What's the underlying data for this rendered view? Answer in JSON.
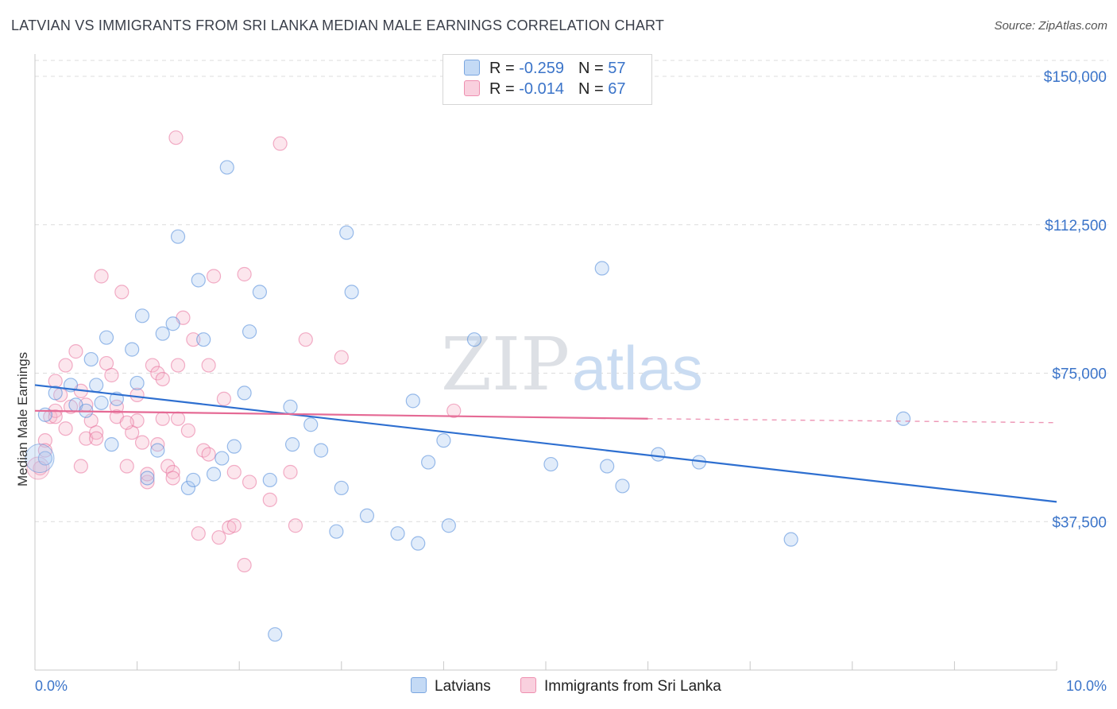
{
  "title": "LATVIAN VS IMMIGRANTS FROM SRI LANKA MEDIAN MALE EARNINGS CORRELATION CHART",
  "source": "Source: ZipAtlas.com",
  "watermark": {
    "zip": "ZIP",
    "atlas": "atlas"
  },
  "legend": {
    "rows": [
      {
        "r_label": "R =",
        "r_value": "-0.259",
        "n_label": "N =",
        "n_value": "57",
        "color": "#a8c8f0"
      },
      {
        "r_label": "R =",
        "r_value": "-0.014",
        "n_label": "N =",
        "n_value": "67",
        "color": "#f6b8cc"
      }
    ]
  },
  "bottom_legend": [
    {
      "label": "Latvians",
      "color": "#a8c8f0"
    },
    {
      "label": "Immigrants from Sri Lanka",
      "color": "#f6b8cc"
    }
  ],
  "chart_data": {
    "type": "scatter",
    "title": "LATVIAN VS IMMIGRANTS FROM SRI LANKA MEDIAN MALE EARNINGS CORRELATION CHART",
    "xlabel": "",
    "ylabel": "Median Male Earnings",
    "x_tick_labels": [
      "0.0%",
      "10.0%"
    ],
    "y_tick_labels": [
      "$37,500",
      "$75,000",
      "$112,500",
      "$150,000"
    ],
    "y_ticks": [
      37500,
      75000,
      112500,
      150000
    ],
    "xlim": [
      0,
      10
    ],
    "ylim": [
      0,
      155000
    ],
    "grid": true,
    "series": [
      {
        "name": "Latvians",
        "color": "#4a86d8",
        "fill": "rgba(168,200,240,0.35)",
        "points": [
          [
            0.1,
            53500
          ],
          [
            0.1,
            64500
          ],
          [
            0.2,
            70000
          ],
          [
            0.35,
            72000
          ],
          [
            0.4,
            67000
          ],
          [
            0.5,
            65500
          ],
          [
            0.55,
            78500
          ],
          [
            0.6,
            72000
          ],
          [
            0.65,
            67500
          ],
          [
            0.7,
            84000
          ],
          [
            0.75,
            57000
          ],
          [
            0.8,
            68500
          ],
          [
            0.95,
            81000
          ],
          [
            1.05,
            89500
          ],
          [
            1.1,
            48500
          ],
          [
            1.2,
            55500
          ],
          [
            1.25,
            85000
          ],
          [
            1.35,
            87500
          ],
          [
            1.4,
            109500
          ],
          [
            1.5,
            46000
          ],
          [
            1.55,
            48000
          ],
          [
            1.6,
            98500
          ],
          [
            1.65,
            83500
          ],
          [
            1.75,
            49500
          ],
          [
            1.83,
            53500
          ],
          [
            1.88,
            127000
          ],
          [
            1.95,
            56500
          ],
          [
            2.05,
            70000
          ],
          [
            2.1,
            85500
          ],
          [
            2.2,
            95500
          ],
          [
            2.3,
            48000
          ],
          [
            2.35,
            9000
          ],
          [
            2.5,
            66500
          ],
          [
            2.52,
            57000
          ],
          [
            2.7,
            62000
          ],
          [
            2.8,
            55500
          ],
          [
            2.95,
            35000
          ],
          [
            3.0,
            46000
          ],
          [
            3.05,
            110500
          ],
          [
            3.1,
            95500
          ],
          [
            3.25,
            39000
          ],
          [
            3.55,
            34500
          ],
          [
            3.7,
            68000
          ],
          [
            3.75,
            32000
          ],
          [
            3.85,
            52500
          ],
          [
            4.0,
            58000
          ],
          [
            4.05,
            36500
          ],
          [
            4.3,
            83500
          ],
          [
            5.05,
            52000
          ],
          [
            5.55,
            101500
          ],
          [
            5.6,
            51500
          ],
          [
            5.75,
            46500
          ],
          [
            6.1,
            54500
          ],
          [
            6.5,
            52500
          ],
          [
            7.4,
            33000
          ],
          [
            8.5,
            63500
          ],
          [
            1.0,
            72500
          ]
        ],
        "trend": {
          "x0": 0.0,
          "y0": 72000,
          "x1": 10.0,
          "y1": 42500
        }
      },
      {
        "name": "Immigrants from Sri Lanka",
        "color": "#e8709a",
        "fill": "rgba(246,184,204,0.35)",
        "points": [
          [
            0.05,
            51000
          ],
          [
            0.1,
            58000
          ],
          [
            0.1,
            55500
          ],
          [
            0.15,
            64000
          ],
          [
            0.2,
            65500
          ],
          [
            0.2,
            73000
          ],
          [
            0.25,
            69500
          ],
          [
            0.3,
            77000
          ],
          [
            0.3,
            61000
          ],
          [
            0.35,
            66500
          ],
          [
            0.4,
            80500
          ],
          [
            0.45,
            70500
          ],
          [
            0.45,
            51500
          ],
          [
            0.5,
            67000
          ],
          [
            0.5,
            58500
          ],
          [
            0.55,
            63000
          ],
          [
            0.6,
            60000
          ],
          [
            0.6,
            58500
          ],
          [
            0.65,
            99500
          ],
          [
            0.7,
            77500
          ],
          [
            0.75,
            74500
          ],
          [
            0.8,
            66500
          ],
          [
            0.8,
            64000
          ],
          [
            0.85,
            95500
          ],
          [
            0.9,
            51500
          ],
          [
            0.95,
            60000
          ],
          [
            1.0,
            69500
          ],
          [
            1.0,
            63000
          ],
          [
            1.05,
            57500
          ],
          [
            1.1,
            47500
          ],
          [
            1.1,
            49500
          ],
          [
            1.15,
            77000
          ],
          [
            1.2,
            75000
          ],
          [
            1.25,
            73500
          ],
          [
            1.25,
            63500
          ],
          [
            1.3,
            51500
          ],
          [
            1.35,
            50000
          ],
          [
            1.35,
            48500
          ],
          [
            1.38,
            134500
          ],
          [
            1.4,
            77000
          ],
          [
            1.4,
            63500
          ],
          [
            1.45,
            89000
          ],
          [
            1.5,
            60500
          ],
          [
            1.55,
            83500
          ],
          [
            1.6,
            34500
          ],
          [
            1.65,
            55500
          ],
          [
            1.7,
            77000
          ],
          [
            1.7,
            54500
          ],
          [
            1.75,
            99500
          ],
          [
            1.8,
            33500
          ],
          [
            1.85,
            68500
          ],
          [
            1.9,
            36000
          ],
          [
            1.95,
            50000
          ],
          [
            1.95,
            36500
          ],
          [
            2.05,
            100000
          ],
          [
            2.05,
            26500
          ],
          [
            2.1,
            47500
          ],
          [
            2.3,
            43000
          ],
          [
            2.4,
            133000
          ],
          [
            2.5,
            50000
          ],
          [
            2.55,
            36500
          ],
          [
            2.65,
            83500
          ],
          [
            3.0,
            79000
          ],
          [
            4.1,
            65500
          ],
          [
            0.2,
            64000
          ],
          [
            1.2,
            57000
          ],
          [
            0.9,
            62500
          ]
        ],
        "trend": {
          "x0": 0.0,
          "y0": 65500,
          "x1": 6.0,
          "y1": 63500,
          "dash_x1": 10.0,
          "dash_y1": 62500
        }
      }
    ]
  }
}
